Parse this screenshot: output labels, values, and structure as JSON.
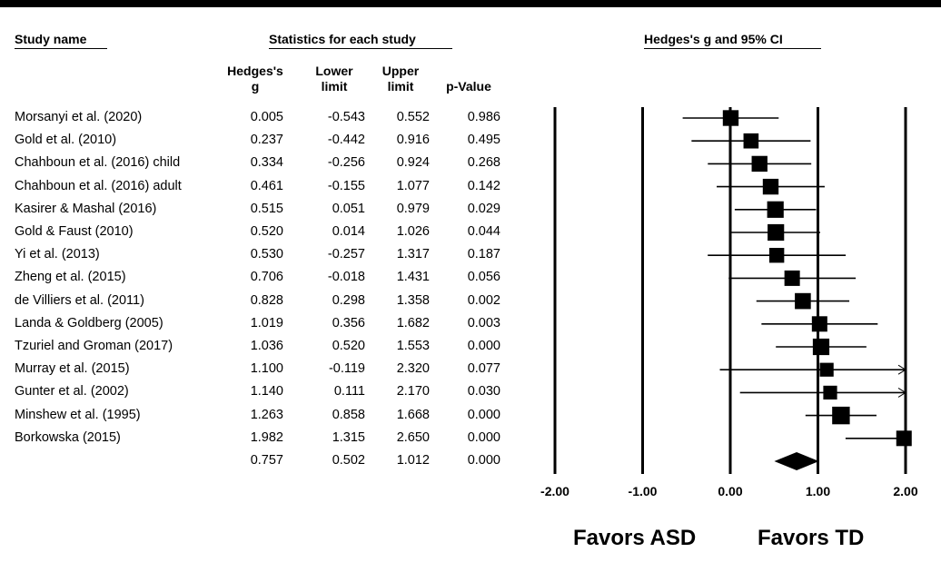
{
  "headers": {
    "study_name": "Study name",
    "statistics": "Statistics for each study",
    "effect_panel": "Hedges's g and 95% CI"
  },
  "columns": {
    "g": [
      "Hedges's",
      "g"
    ],
    "lower": [
      "Lower",
      "limit"
    ],
    "upper": [
      "Upper",
      "limit"
    ],
    "p": "p-Value"
  },
  "rows": [
    {
      "study": "Morsanyi et al. (2020)",
      "g": "0.005",
      "lower": "-0.543",
      "upper": "0.552",
      "p": "0.986"
    },
    {
      "study": "Gold et al. (2010)",
      "g": "0.237",
      "lower": "-0.442",
      "upper": "0.916",
      "p": "0.495"
    },
    {
      "study": "Chahboun et al. (2016) child",
      "g": "0.334",
      "lower": "-0.256",
      "upper": "0.924",
      "p": "0.268"
    },
    {
      "study": "Chahboun et al. (2016) adult",
      "g": "0.461",
      "lower": "-0.155",
      "upper": "1.077",
      "p": "0.142"
    },
    {
      "study": "Kasirer & Mashal (2016)",
      "g": "0.515",
      "lower": "0.051",
      "upper": "0.979",
      "p": "0.029"
    },
    {
      "study": "Gold & Faust (2010)",
      "g": "0.520",
      "lower": "0.014",
      "upper": "1.026",
      "p": "0.044"
    },
    {
      "study": "Yi et al. (2013)",
      "g": "0.530",
      "lower": "-0.257",
      "upper": "1.317",
      "p": "0.187"
    },
    {
      "study": "Zheng et al. (2015)",
      "g": "0.706",
      "lower": "-0.018",
      "upper": "1.431",
      "p": "0.056"
    },
    {
      "study": "de Villiers et al. (2011)",
      "g": "0.828",
      "lower": "0.298",
      "upper": "1.358",
      "p": "0.002"
    },
    {
      "study": "Landa & Goldberg (2005)",
      "g": "1.019",
      "lower": "0.356",
      "upper": "1.682",
      "p": "0.003"
    },
    {
      "study": "Tzuriel and Groman (2017)",
      "g": "1.036",
      "lower": "0.520",
      "upper": "1.553",
      "p": "0.000"
    },
    {
      "study": "Murray et al. (2015)",
      "g": "1.100",
      "lower": "-0.119",
      "upper": "2.320",
      "p": "0.077"
    },
    {
      "study": "Gunter et al. (2002)",
      "g": "1.140",
      "lower": "0.111",
      "upper": "2.170",
      "p": "0.030"
    },
    {
      "study": "Minshew et al. (1995)",
      "g": "1.263",
      "lower": "0.858",
      "upper": "1.668",
      "p": "0.000"
    },
    {
      "study": "Borkowska (2015)",
      "g": "1.982",
      "lower": "1.315",
      "upper": "2.650",
      "p": "0.000"
    }
  ],
  "summary": {
    "g": "0.757",
    "lower": "0.502",
    "upper": "1.012",
    "p": "0.000"
  },
  "favors": {
    "left": "Favors ASD",
    "right": "Favors TD"
  },
  "chart_data": {
    "type": "forest",
    "title": "Hedges's g and 95% CI",
    "xlim": [
      -2,
      2
    ],
    "ticks": [
      -2,
      -1,
      0,
      1,
      2
    ],
    "tick_labels": [
      "-2.00",
      "-1.00",
      "0.00",
      "1.00",
      "2.00"
    ],
    "studies": [
      {
        "g": 0.005,
        "lower": -0.543,
        "upper": 0.552,
        "weight": 0.78
      },
      {
        "g": 0.237,
        "lower": -0.442,
        "upper": 0.916,
        "weight": 0.72
      },
      {
        "g": 0.334,
        "lower": -0.256,
        "upper": 0.924,
        "weight": 0.78
      },
      {
        "g": 0.461,
        "lower": -0.155,
        "upper": 1.077,
        "weight": 0.78
      },
      {
        "g": 0.515,
        "lower": 0.051,
        "upper": 0.979,
        "weight": 0.85
      },
      {
        "g": 0.52,
        "lower": 0.014,
        "upper": 1.026,
        "weight": 0.85
      },
      {
        "g": 0.53,
        "lower": -0.257,
        "upper": 1.317,
        "weight": 0.7
      },
      {
        "g": 0.706,
        "lower": -0.018,
        "upper": 1.431,
        "weight": 0.75
      },
      {
        "g": 0.828,
        "lower": 0.298,
        "upper": 1.358,
        "weight": 0.8
      },
      {
        "g": 1.019,
        "lower": 0.356,
        "upper": 1.682,
        "weight": 0.75
      },
      {
        "g": 1.036,
        "lower": 0.52,
        "upper": 1.553,
        "weight": 0.85
      },
      {
        "g": 1.1,
        "lower": -0.119,
        "upper": 2.32,
        "weight": 0.6
      },
      {
        "g": 1.14,
        "lower": 0.111,
        "upper": 2.17,
        "weight": 0.6
      },
      {
        "g": 1.263,
        "lower": 0.858,
        "upper": 1.668,
        "weight": 0.95
      },
      {
        "g": 1.982,
        "lower": 1.315,
        "upper": 2.65,
        "weight": 0.75
      }
    ],
    "summary": {
      "g": 0.757,
      "lower": 0.502,
      "upper": 1.012
    }
  }
}
